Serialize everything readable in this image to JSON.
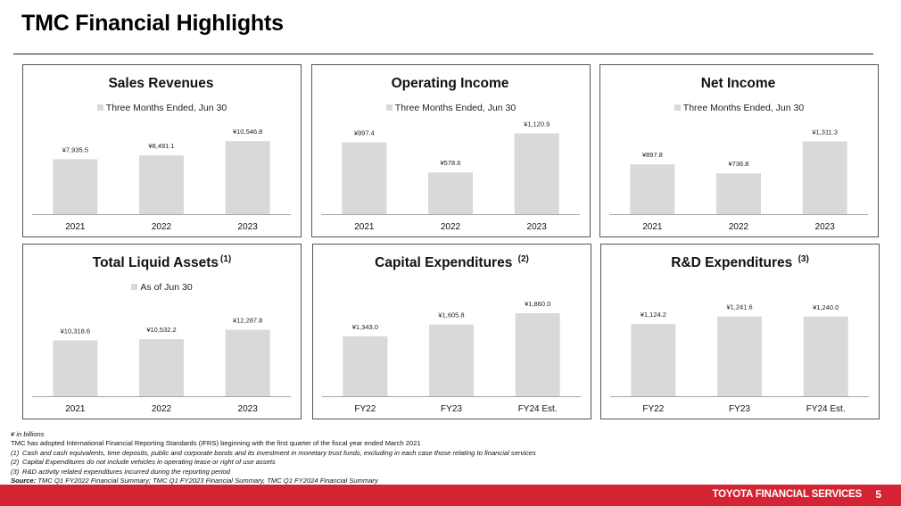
{
  "page": {
    "title": "TMC Financial Highlights",
    "footer_brand": "TOYOTA FINANCIAL SERVICES",
    "page_number": "5",
    "colors": {
      "accent": "#d42433",
      "bar": "#d9d9d9",
      "axis": "#a6a6a6"
    }
  },
  "panels": [
    {
      "title": "Sales Revenues",
      "superscript": "",
      "legend": "Three Months Ended, Jun 30"
    },
    {
      "title": "Operating Income",
      "superscript": "",
      "legend": "Three Months Ended, Jun 30"
    },
    {
      "title": "Net Income",
      "superscript": "",
      "legend": "Three Months Ended, Jun 30"
    },
    {
      "title": "Total Liquid Assets",
      "superscript": "(1)",
      "legend": "As of Jun 30"
    },
    {
      "title": "Capital Expenditures ",
      "superscript": "(2)",
      "legend": ""
    },
    {
      "title": "R&D Expenditures ",
      "superscript": "(3)",
      "legend": ""
    }
  ],
  "chart_data": [
    {
      "type": "bar",
      "title": "Sales Revenues",
      "legend": [
        "Three Months Ended, Jun 30"
      ],
      "categories": [
        "2021",
        "2022",
        "2023"
      ],
      "values": [
        7935.5,
        8491.1,
        10546.8
      ],
      "labels": [
        "¥7,935.5",
        "¥8,491.1",
        "¥10,546.8"
      ],
      "ylim": [
        0,
        12500
      ],
      "grid": false,
      "unit": "¥ in billions"
    },
    {
      "type": "bar",
      "title": "Operating Income",
      "legend": [
        "Three Months Ended, Jun 30"
      ],
      "categories": [
        "2021",
        "2022",
        "2023"
      ],
      "values": [
        997.4,
        578.6,
        1120.9
      ],
      "labels": [
        "¥997.4",
        "¥578.6",
        "¥1,120.9"
      ],
      "ylim": [
        0,
        1200
      ],
      "grid": false,
      "unit": "¥ in billions"
    },
    {
      "type": "bar",
      "title": "Net Income",
      "legend": [
        "Three Months Ended, Jun 30"
      ],
      "categories": [
        "2021",
        "2022",
        "2023"
      ],
      "values": [
        897.8,
        736.8,
        1311.3
      ],
      "labels": [
        "¥897.8",
        "¥736.8",
        "¥1,311.3"
      ],
      "ylim": [
        0,
        1560
      ],
      "grid": false,
      "unit": "¥ in billions"
    },
    {
      "type": "bar",
      "title": "Total Liquid Assets",
      "legend": [
        "As of Jun 30"
      ],
      "categories": [
        "2021",
        "2022",
        "2023"
      ],
      "values": [
        10318.6,
        10532.2,
        12287.8
      ],
      "labels": [
        "¥10,318.6",
        "¥10,532.2",
        "¥12,287.8"
      ],
      "ylim": [
        0,
        16500
      ],
      "grid": false,
      "unit": "¥ in billions"
    },
    {
      "type": "bar",
      "title": "Capital Expenditures",
      "legend": [],
      "categories": [
        "FY22",
        "FY23",
        "FY24 Est."
      ],
      "values": [
        1343.0,
        1605.8,
        1860.0
      ],
      "labels": [
        "¥1,343.0",
        "¥1,605.8",
        "¥1,860.0"
      ],
      "ylim": [
        0,
        2000
      ],
      "grid": false,
      "unit": "¥ in billions"
    },
    {
      "type": "bar",
      "title": "R&D Expenditures",
      "legend": [],
      "categories": [
        "FY22",
        "FY23",
        "FY24 Est."
      ],
      "values": [
        1124.2,
        1241.6,
        1240.0
      ],
      "labels": [
        "¥1,124.2",
        "¥1,241.6",
        "¥1,240.0"
      ],
      "ylim": [
        0,
        1390
      ],
      "grid": false,
      "unit": "¥ in billions"
    }
  ],
  "footnotes": {
    "unit": "¥ in billions",
    "ifrs": "TMC has adopted International Financial Reporting Standards (IFRS) beginning with the first quarter of the fiscal year ended March 2021",
    "notes": [
      {
        "num": "(1)",
        "text": "Cash and cash equivalents, time deposits, public and corporate bonds and its investment in monetary trust funds, excluding in each case those relating to financial services"
      },
      {
        "num": "(2)",
        "text": "Capital Expenditures do not include vehicles in operating lease or right of use assets"
      },
      {
        "num": "(3)",
        "text": "R&D activity related expenditures incurred during the reporting period"
      }
    ],
    "source_label": "Source:",
    "source_text": " TMC Q1 FY2022 Financial Summary; TMC Q1 FY2023 Financial Summary, TMC Q1 FY2024 Financial Summary"
  }
}
